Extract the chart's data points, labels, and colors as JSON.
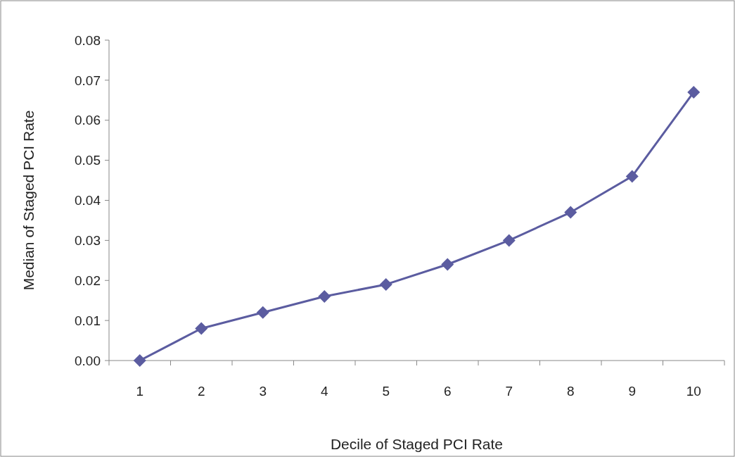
{
  "chart_data": {
    "type": "line",
    "xlabel": "Decile of Staged PCI Rate",
    "ylabel": "Median of Staged PCI Rate",
    "categories": [
      "1",
      "2",
      "3",
      "4",
      "5",
      "6",
      "7",
      "8",
      "9",
      "10"
    ],
    "series": [
      {
        "color": "#5b5ca0",
        "values": [
          0,
          0.008,
          0.012,
          0.016,
          0.019,
          0.024,
          0.03,
          0.037,
          0.046,
          0.067
        ]
      }
    ],
    "ylim": [
      0,
      0.08
    ],
    "yticks": [
      {
        "value": 0,
        "label": "0.00"
      },
      {
        "value": 0.01,
        "label": "0.01"
      },
      {
        "value": 0.02,
        "label": "0.02"
      },
      {
        "value": 0.03,
        "label": "0.03"
      },
      {
        "value": 0.04,
        "label": "0.04"
      },
      {
        "value": 0.05,
        "label": "0.05"
      },
      {
        "value": 0.06,
        "label": "0.06"
      },
      {
        "value": 0.07,
        "label": "0.07"
      },
      {
        "value": 0.08,
        "label": "0.08"
      }
    ],
    "marker": "diamond",
    "line_style": "solid",
    "grid": false
  }
}
